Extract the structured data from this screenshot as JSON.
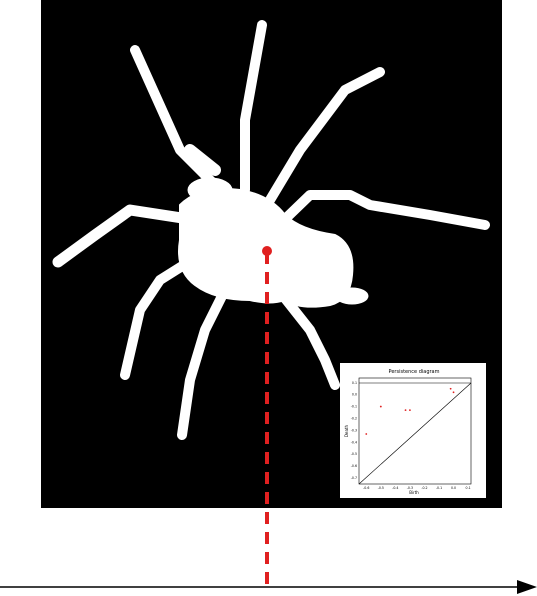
{
  "colors": {
    "background": "#ffffff",
    "image_bg": "#000000",
    "silhouette": "#ffffff",
    "marker": "#e02020",
    "axis": "#000000",
    "diagonal": "#000000",
    "points": "#e02020"
  },
  "icons": {
    "arrow": "arrow-right-icon",
    "marker": "red-dot-marker-icon"
  },
  "inset": {
    "title": "Persistence diagram",
    "xlabel": "Birth",
    "ylabel": "Death",
    "x_ticks": [
      "-0.6",
      "-0.5",
      "-0.4",
      "-0.3",
      "-0.2",
      "-0.1",
      "0.0",
      "0.1"
    ],
    "y_ticks": [
      "0.1",
      "0.0",
      "-0.1",
      "-0.2",
      "-0.3",
      "-0.4",
      "-0.5",
      "-0.6",
      "-0.7"
    ]
  },
  "chart_data": {
    "type": "scatter",
    "title": "Persistence diagram",
    "xlabel": "Birth",
    "ylabel": "Death",
    "xlim": [
      -0.65,
      0.12
    ],
    "ylim": [
      -0.75,
      0.14
    ],
    "series": [
      {
        "x": [
          -0.6,
          -0.5,
          -0.33,
          -0.3,
          -0.02,
          0.0
        ],
        "y": [
          -0.33,
          -0.1,
          -0.13,
          -0.13,
          0.05,
          0.02
        ]
      }
    ],
    "reference_lines": [
      "diagonal y = x",
      "horizontal line at top (infinity)"
    ]
  }
}
